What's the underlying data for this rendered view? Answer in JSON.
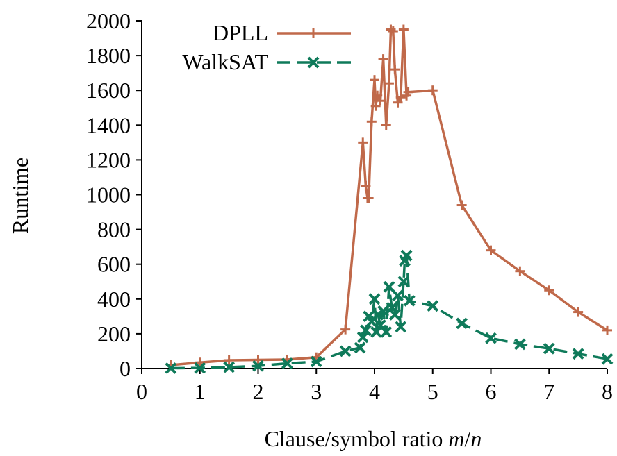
{
  "chart_data": {
    "type": "line",
    "xlabel": {
      "prefix": "Clause/symbol ratio ",
      "m": "m",
      "slash": "/",
      "n": "n"
    },
    "ylabel": "Runtime",
    "xlim": [
      0,
      8
    ],
    "ylim": [
      0,
      2000
    ],
    "xticks": [
      "0",
      "1",
      "2",
      "3",
      "4",
      "5",
      "6",
      "7",
      "8"
    ],
    "yticks": [
      "0",
      "200",
      "400",
      "600",
      "800",
      "1000",
      "1200",
      "1400",
      "1600",
      "1800",
      "2000"
    ],
    "grid": false,
    "legend_position": "top",
    "series": [
      {
        "name": "DPLL",
        "color": "#c0694a",
        "marker": "plus",
        "dash": "solid",
        "points": [
          [
            0.5,
            20
          ],
          [
            1.0,
            35
          ],
          [
            1.5,
            48
          ],
          [
            2.0,
            50
          ],
          [
            2.5,
            52
          ],
          [
            3.0,
            65
          ],
          [
            3.5,
            225
          ],
          [
            3.8,
            1300
          ],
          [
            3.85,
            1050
          ],
          [
            3.88,
            980
          ],
          [
            3.9,
            980
          ],
          [
            3.95,
            1420
          ],
          [
            4.0,
            1660
          ],
          [
            4.02,
            1510
          ],
          [
            4.05,
            1570
          ],
          [
            4.1,
            1540
          ],
          [
            4.15,
            1780
          ],
          [
            4.2,
            1400
          ],
          [
            4.25,
            1640
          ],
          [
            4.28,
            1950
          ],
          [
            4.32,
            1940
          ],
          [
            4.35,
            1720
          ],
          [
            4.4,
            1530
          ],
          [
            4.45,
            1560
          ],
          [
            4.5,
            1950
          ],
          [
            4.55,
            1570
          ],
          [
            4.58,
            1590
          ],
          [
            5.0,
            1600
          ],
          [
            5.5,
            940
          ],
          [
            6.0,
            680
          ],
          [
            6.5,
            560
          ],
          [
            7.0,
            450
          ],
          [
            7.5,
            325
          ],
          [
            8.0,
            220
          ]
        ]
      },
      {
        "name": "WalkSAT",
        "color": "#0f7a5a",
        "marker": "x",
        "dash": "dashed",
        "points": [
          [
            0.5,
            2
          ],
          [
            1.0,
            3
          ],
          [
            1.5,
            8
          ],
          [
            2.0,
            15
          ],
          [
            2.5,
            30
          ],
          [
            3.0,
            40
          ],
          [
            3.5,
            100
          ],
          [
            3.75,
            120
          ],
          [
            3.8,
            180
          ],
          [
            3.85,
            220
          ],
          [
            3.9,
            300
          ],
          [
            3.95,
            270
          ],
          [
            4.0,
            400
          ],
          [
            4.03,
            210
          ],
          [
            4.06,
            310
          ],
          [
            4.1,
            250
          ],
          [
            4.15,
            330
          ],
          [
            4.2,
            210
          ],
          [
            4.25,
            470
          ],
          [
            4.3,
            350
          ],
          [
            4.35,
            310
          ],
          [
            4.4,
            420
          ],
          [
            4.45,
            240
          ],
          [
            4.5,
            500
          ],
          [
            4.52,
            620
          ],
          [
            4.55,
            650
          ],
          [
            4.6,
            390
          ],
          [
            5.0,
            360
          ],
          [
            5.5,
            260
          ],
          [
            6.0,
            175
          ],
          [
            6.5,
            140
          ],
          [
            7.0,
            115
          ],
          [
            7.5,
            85
          ],
          [
            8.0,
            55
          ]
        ]
      }
    ]
  }
}
